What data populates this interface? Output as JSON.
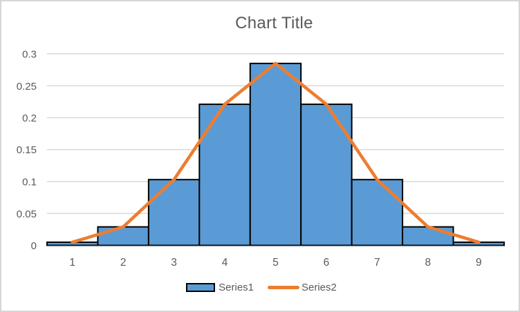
{
  "window": {
    "background_color": "#FFFFFF",
    "frame_border_color": "#D6D6D6"
  },
  "chart_data": {
    "type": "bar",
    "subtype": "histogram-with-line-overlay",
    "title": "Chart Title",
    "categories": [
      "1",
      "2",
      "3",
      "4",
      "5",
      "6",
      "7",
      "8",
      "9"
    ],
    "series": [
      {
        "name": "Series1",
        "type": "bar",
        "values": [
          0.005,
          0.029,
          0.103,
          0.221,
          0.285,
          0.221,
          0.103,
          0.029,
          0.005
        ],
        "fill_color": "#5B9BD5",
        "border_color": "#000000"
      },
      {
        "name": "Series2",
        "type": "line",
        "values": [
          0.005,
          0.029,
          0.103,
          0.221,
          0.285,
          0.221,
          0.103,
          0.029,
          0.005
        ],
        "line_color": "#ED7D31"
      }
    ],
    "xlabel": "",
    "ylabel": "",
    "ylim": [
      0,
      0.3
    ],
    "ytick_step": 0.05,
    "ytick_labels": [
      "0",
      "0.05",
      "0.1",
      "0.15",
      "0.2",
      "0.25",
      "0.3"
    ],
    "grid": true,
    "gridline_color": "#D9D9D9",
    "axis_line_color": "#D9D9D9",
    "axis_text_color": "#595959",
    "title_color": "#595959",
    "bar_gap_pct": 0,
    "legend_position": "bottom"
  },
  "legend": {
    "items": [
      {
        "label": "Series1",
        "swatch": "bar"
      },
      {
        "label": "Series2",
        "swatch": "line"
      }
    ]
  }
}
